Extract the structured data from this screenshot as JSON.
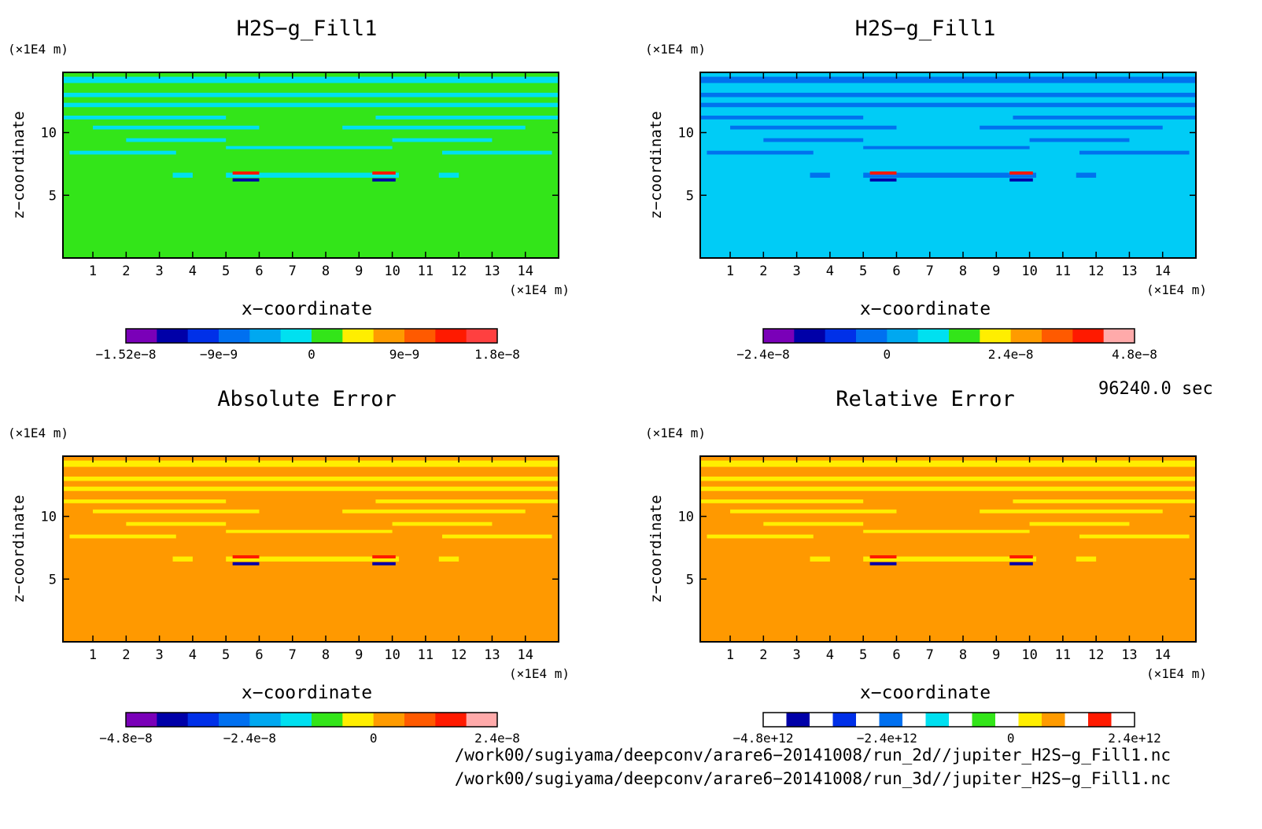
{
  "chart_data": [
    {
      "type": "heatmap",
      "title": "H2S−g_Fill1",
      "xlabel": "x−coordinate",
      "ylabel": "z−coordinate",
      "x_unit": "(×1E4 m)",
      "z_unit": "(×1E4 m)",
      "x_ticks": [
        "1",
        "2",
        "3",
        "4",
        "5",
        "6",
        "7",
        "8",
        "9",
        "10",
        "11",
        "12",
        "13",
        "14"
      ],
      "z_ticks": [
        "5",
        "10"
      ],
      "xlim": [
        0.1,
        15.0
      ],
      "zlim": [
        0.0,
        14.8
      ],
      "background_color": "#33e519",
      "band_color": "#00e0f0",
      "colorbar": {
        "colors": [
          "#7a00b8",
          "#0000a8",
          "#0030e8",
          "#0070f0",
          "#00a8f0",
          "#00e0f0",
          "#33e519",
          "#ffee00",
          "#ff9b00",
          "#ff5a00",
          "#ff1a00",
          "#ff4040"
        ],
        "labels": [
          "−1.52e−8",
          "−9e−9",
          "0",
          "9e−9",
          "1.8e−8"
        ]
      }
    },
    {
      "type": "heatmap",
      "title": "H2S−g_Fill1",
      "xlabel": "x−coordinate",
      "ylabel": "z−coordinate",
      "x_unit": "(×1E4 m)",
      "z_unit": "(×1E4 m)",
      "x_ticks": [
        "1",
        "2",
        "3",
        "4",
        "5",
        "6",
        "7",
        "8",
        "9",
        "10",
        "11",
        "12",
        "13",
        "14"
      ],
      "z_ticks": [
        "5",
        "10"
      ],
      "xlim": [
        0.1,
        15.0
      ],
      "zlim": [
        0.0,
        14.8
      ],
      "background_color": "#00ccf6",
      "band_color": "#0072ee",
      "colorbar": {
        "colors": [
          "#7a00b8",
          "#0000a8",
          "#0030e8",
          "#0070f0",
          "#00a8f0",
          "#00e0f0",
          "#33e519",
          "#ffee00",
          "#ff9b00",
          "#ff5a00",
          "#ff1a00",
          "#ffaaaa"
        ],
        "labels": [
          "−2.4e−8",
          "0",
          "2.4e−8",
          "4.8e−8"
        ]
      }
    },
    {
      "type": "heatmap",
      "title": "Absolute Error",
      "xlabel": "x−coordinate",
      "ylabel": "z−coordinate",
      "x_unit": "(×1E4 m)",
      "z_unit": "(×1E4 m)",
      "x_ticks": [
        "1",
        "2",
        "3",
        "4",
        "5",
        "6",
        "7",
        "8",
        "9",
        "10",
        "11",
        "12",
        "13",
        "14"
      ],
      "z_ticks": [
        "5",
        "10"
      ],
      "xlim": [
        0.1,
        15.0
      ],
      "zlim": [
        0.0,
        14.8
      ],
      "background_color": "#ff9900",
      "band_color": "#ffee00",
      "colorbar": {
        "colors": [
          "#7a00b8",
          "#0000a8",
          "#0030e8",
          "#0070f0",
          "#00a8f0",
          "#00e0f0",
          "#33e519",
          "#ffee00",
          "#ff9b00",
          "#ff5a00",
          "#ff1a00",
          "#ffaaaa"
        ],
        "labels": [
          "−4.8e−8",
          "−2.4e−8",
          "0",
          "2.4e−8"
        ]
      }
    },
    {
      "type": "heatmap",
      "title": "Relative Error",
      "xlabel": "x−coordinate",
      "ylabel": "z−coordinate",
      "x_unit": "(×1E4 m)",
      "z_unit": "(×1E4 m)",
      "x_ticks": [
        "1",
        "2",
        "3",
        "4",
        "5",
        "6",
        "7",
        "8",
        "9",
        "10",
        "11",
        "12",
        "13",
        "14"
      ],
      "z_ticks": [
        "5",
        "10"
      ],
      "xlim": [
        0.1,
        15.0
      ],
      "zlim": [
        0.0,
        14.8
      ],
      "background_color": "#ff9900",
      "band_color": "#ffee00",
      "colorbar": {
        "colors": [
          "#ffffff",
          "#0000a8",
          "#ffffff",
          "#0030e8",
          "#ffffff",
          "#0070f0",
          "#ffffff",
          "#00e0f0",
          "#ffffff",
          "#33e519",
          "#ffffff",
          "#ffee00",
          "#ff9b00",
          "#ffffff",
          "#ff1a00",
          "#ffffff"
        ],
        "labels": [
          "−4.8e+12",
          "−2.4e+12",
          "0",
          "2.4e+12"
        ]
      }
    }
  ],
  "time_label": "96240.0 sec",
  "file_paths": [
    "/work00/sugiyama/deepconv/arare6−20141008/run_2d//jupiter_H2S−g_Fill1.nc",
    "/work00/sugiyama/deepconv/arare6−20141008/run_3d//jupiter_H2S−g_Fill1.nc"
  ]
}
